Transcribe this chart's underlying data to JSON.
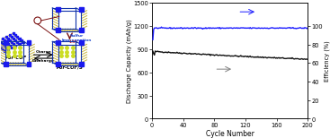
{
  "xlabel": "Cycle Number",
  "ylabel_left": "Discharge Capacity (mAh/g)",
  "ylabel_right": "Efficiency (%)",
  "xlim": [
    0,
    200
  ],
  "ylim_left": [
    0,
    1500
  ],
  "ylim_right": [
    0,
    125
  ],
  "xticks": [
    0,
    40,
    80,
    120,
    160,
    200
  ],
  "yticks_left": [
    0,
    300,
    600,
    900,
    1200,
    1500
  ],
  "yticks_right": [
    0,
    20,
    40,
    60,
    80,
    100
  ],
  "capacity_color": "#111111",
  "efficiency_color": "#1a1aff",
  "background_color": "#ffffff",
  "blue_color": "#1a1aee",
  "yellow_color": "#d4c84a",
  "frame_color": "#2244bb",
  "strip_color": "#c8bb52",
  "label_color": "#1a44cc",
  "arrow_color": "#7a1111",
  "text_color": "#1a44cc",
  "red_text_color": "#cc2222"
}
